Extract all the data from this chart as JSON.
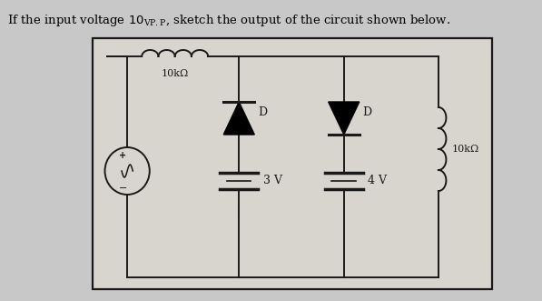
{
  "bg_color": "#c8c8c8",
  "box_color": "#000000",
  "line_color": "#1a1a1a",
  "resistor_top_label": "10kΩ",
  "resistor_right_label": "10kΩ",
  "diode1_label": "D",
  "diode2_label": "D",
  "battery1_label": "3 V",
  "battery2_label": "4 V",
  "title_prefix": "If the input voltage 10",
  "title_subscript": "VP.P",
  "title_suffix": ", sketch the output of the circuit shown below."
}
